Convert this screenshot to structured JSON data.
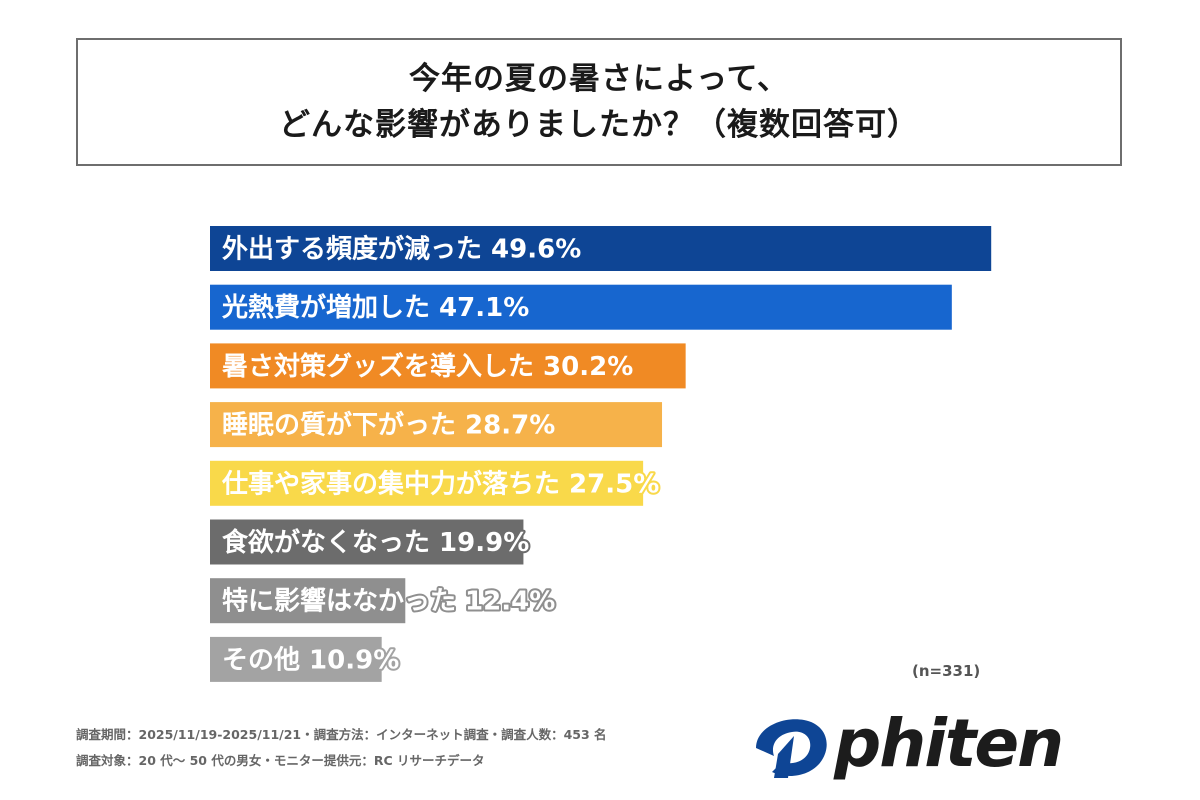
{
  "title": {
    "line1": "今年の夏の暑さによって、",
    "line2": "どんな影響がありましたか？（複数回答可）"
  },
  "chart_data": {
    "type": "bar",
    "orientation": "horizontal",
    "unit": "%",
    "xlim": [
      0,
      50
    ],
    "bars": [
      {
        "label": "外出する頻度が減った",
        "value": 49.6,
        "display": "49.6%",
        "color": "#0e4595"
      },
      {
        "label": "光熱費が増加した",
        "value": 47.1,
        "display": "47.1%",
        "color": "#1766cf"
      },
      {
        "label": "暑さ対策グッズを導入した",
        "value": 30.2,
        "display": "30.2%",
        "color": "#f08a24"
      },
      {
        "label": "睡眠の質が下がった",
        "value": 28.7,
        "display": "28.7%",
        "color": "#f6b24a"
      },
      {
        "label": "仕事や家事の集中力が落ちた",
        "value": 27.5,
        "display": "27.5%",
        "color": "#f9d94a"
      },
      {
        "label": "食欲がなくなった",
        "value": 19.9,
        "display": "19.9%",
        "color": "#6c6c6c"
      },
      {
        "label": "特に影響はなかった",
        "value": 12.4,
        "display": "12.4%",
        "color": "#8f8f8f"
      },
      {
        "label": "その他",
        "value": 10.9,
        "display": "10.9%",
        "color": "#a3a3a3"
      }
    ],
    "n_label": "(n=331)"
  },
  "footnotes": {
    "line1": "調査期間：2025/11/19-2025/11/21・調査方法：インターネット調査・調査人数：453 名",
    "line2": "調査対象：20 代～ 50 代の男女・モニター提供元：RC リサーチデータ"
  },
  "logo": {
    "text": "phiten",
    "color": "#1c1c1c",
    "accent": "#0e4595"
  }
}
